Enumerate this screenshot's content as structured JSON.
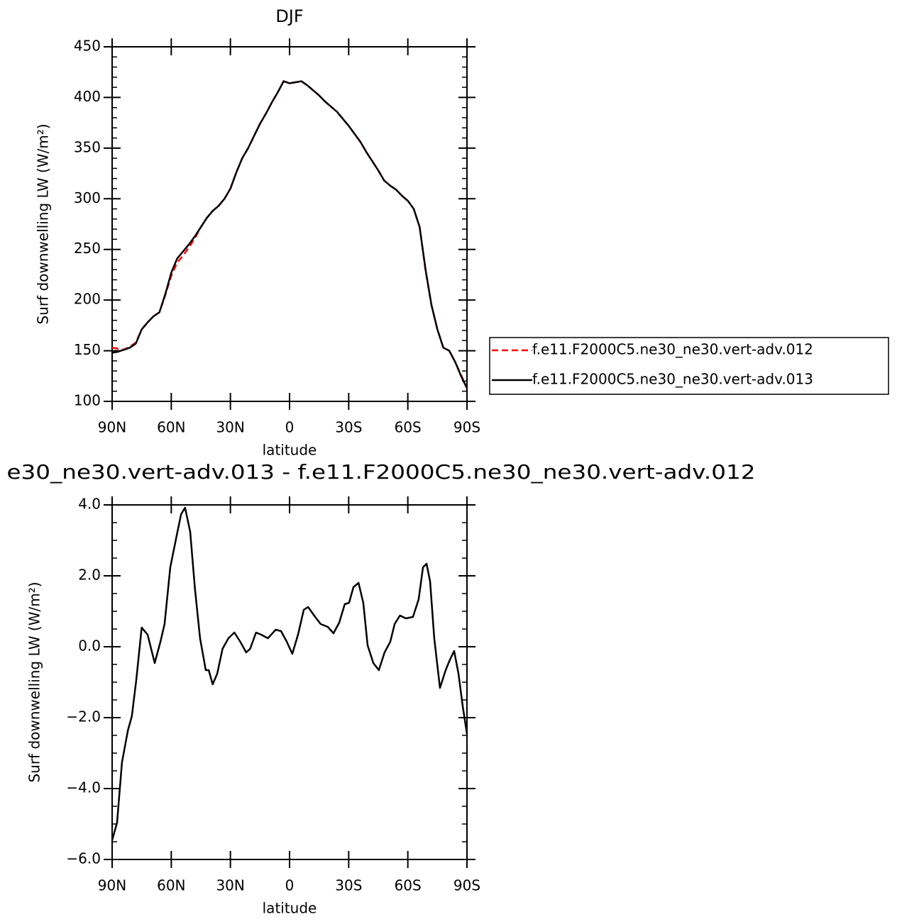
{
  "chart_data": [
    {
      "type": "line",
      "title": "DJF",
      "xlabel": "latitude",
      "ylabel": "Surf downwelling LW (W/m²)",
      "x": [
        90,
        87,
        84,
        81,
        78,
        75,
        72,
        69,
        66,
        63,
        60,
        57,
        54,
        51,
        48,
        45,
        42,
        39,
        36,
        33,
        30,
        27,
        24,
        21,
        18,
        15,
        12,
        9,
        6,
        3,
        0,
        -3,
        -6,
        -9,
        -12,
        -15,
        -18,
        -21,
        -24,
        -27,
        -30,
        -33,
        -36,
        -39,
        -42,
        -45,
        -48,
        -51,
        -54,
        -57,
        -60,
        -63,
        -66,
        -69,
        -72,
        -75,
        -78,
        -81,
        -84,
        -87,
        -90
      ],
      "series": [
        {
          "name": "f.e11.F2000C5.ne30_ne30.vert-adv.012",
          "color": "#ff0000",
          "dash": true,
          "values": [
            153,
            152,
            151,
            154,
            158,
            171,
            178,
            184,
            188,
            205,
            224,
            237,
            244,
            252,
            261,
            272,
            281,
            288,
            293,
            300,
            310,
            326,
            340,
            350,
            362,
            374,
            384,
            395,
            405,
            416,
            414,
            415,
            416,
            412,
            407,
            402,
            396,
            391,
            386,
            379,
            372,
            364,
            356,
            346,
            337,
            328,
            318,
            313,
            309,
            303,
            298,
            290,
            272,
            229,
            195,
            171,
            153,
            150,
            139,
            126,
            113
          ]
        },
        {
          "name": "f.e11.F2000C5.ne30_ne30.vert-adv.013",
          "color": "#000000",
          "dash": false,
          "values": [
            148,
            149,
            151,
            153,
            157,
            171,
            178,
            184,
            188,
            206,
            227,
            241,
            248,
            255,
            263,
            272,
            281,
            288,
            293,
            300,
            310,
            326,
            340,
            350,
            362,
            374,
            384,
            395,
            405,
            416,
            414,
            415,
            416,
            412,
            407,
            402,
            396,
            391,
            386,
            379,
            372,
            364,
            356,
            346,
            337,
            328,
            318,
            313,
            309,
            303,
            298,
            290,
            272,
            230,
            195,
            171,
            153,
            150,
            139,
            125,
            113
          ]
        }
      ],
      "xlim": [
        90,
        -90
      ],
      "xticks": [
        {
          "value": 90,
          "label": "90N"
        },
        {
          "value": 60,
          "label": "60N"
        },
        {
          "value": 30,
          "label": "30N"
        },
        0,
        {
          "value": -30,
          "label": "30S"
        },
        {
          "value": -60,
          "label": "60S"
        },
        {
          "value": -90,
          "label": "90S"
        }
      ],
      "ylim": [
        100,
        450
      ],
      "yticks": [
        100,
        150,
        200,
        250,
        300,
        350,
        400,
        450
      ],
      "yminorticks": [
        110,
        120,
        130,
        140,
        160,
        170,
        180,
        190,
        210,
        220,
        230,
        240,
        260,
        270,
        280,
        290,
        310,
        320,
        330,
        340,
        360,
        370,
        380,
        390,
        410,
        420,
        430,
        440
      ],
      "legend": "right"
    },
    {
      "type": "line",
      "title": "e30_ne30.vert-adv.013 - f.e11.F2000C5.ne30_ne30.vert-adv.012",
      "xlabel": "latitude",
      "ylabel": "Surf downwelling LW (W/m²)",
      "x": [
        90,
        87.5,
        85,
        82,
        80,
        77.8,
        75,
        72,
        68.4,
        65.5,
        63.4,
        60.5,
        57.6,
        55,
        53,
        50.4,
        48,
        45.4,
        42.5,
        41,
        39,
        36.7,
        34,
        31,
        28,
        25,
        22,
        20,
        17,
        14.4,
        11,
        7,
        4.3,
        1.4,
        -1.4,
        -4.3,
        -7.2,
        -9.4,
        -13,
        -15.8,
        -19.4,
        -22.3,
        -25.2,
        -28,
        -30.2,
        -32.4,
        -35,
        -37.4,
        -39.6,
        -42.5,
        -45.3,
        -48.2,
        -51.1,
        -53.3,
        -56,
        -59,
        -62.6,
        -65.5,
        -67.7,
        -69.5,
        -71.3,
        -73.4,
        -76.3,
        -79.2,
        -81.4,
        -83.5,
        -85.7,
        -87.8,
        -90
      ],
      "series": [
        {
          "color": "#000000",
          "dash": false,
          "values": [
            -5.46,
            -4.96,
            -3.26,
            -2.36,
            -1.96,
            -0.96,
            0.54,
            0.34,
            -0.46,
            0.14,
            0.64,
            2.24,
            3.04,
            3.74,
            3.92,
            3.24,
            1.64,
            0.24,
            -0.66,
            -0.66,
            -1.06,
            -0.76,
            -0.06,
            0.24,
            0.4,
            0.14,
            -0.16,
            -0.06,
            0.4,
            0.34,
            0.24,
            0.48,
            0.44,
            0.14,
            -0.2,
            0.34,
            1.04,
            1.12,
            0.84,
            0.64,
            0.56,
            0.38,
            0.68,
            1.2,
            1.24,
            1.68,
            1.8,
            1.24,
            0.04,
            -0.46,
            -0.66,
            -0.16,
            0.14,
            0.64,
            0.88,
            0.8,
            0.84,
            1.34,
            2.24,
            2.34,
            1.84,
            0.24,
            -1.16,
            -0.66,
            -0.36,
            -0.12,
            -0.76,
            -1.66,
            -2.46
          ]
        }
      ],
      "xlim": [
        90,
        -90
      ],
      "xticks": [
        {
          "value": 90,
          "label": "90N"
        },
        {
          "value": 60,
          "label": "60N"
        },
        {
          "value": 30,
          "label": "30N"
        },
        0,
        {
          "value": -30,
          "label": "30S"
        },
        {
          "value": -60,
          "label": "60S"
        },
        {
          "value": -90,
          "label": "90S"
        }
      ],
      "ylim": [
        -6,
        4
      ],
      "yticks": [
        {
          "value": -6,
          "label": "−6.0"
        },
        {
          "value": -4,
          "label": "−4.0"
        },
        {
          "value": -2,
          "label": "−2.0"
        },
        {
          "value": 0,
          "label": "0.0"
        },
        {
          "value": 2,
          "label": "2.0"
        },
        {
          "value": 4,
          "label": "4.0"
        }
      ],
      "yminorticks": [
        -5.5,
        -5,
        -4.5,
        -3.5,
        -3,
        -2.5,
        -1.5,
        -1,
        -0.5,
        0.5,
        1,
        1.5,
        2.5,
        3,
        3.5
      ]
    }
  ]
}
